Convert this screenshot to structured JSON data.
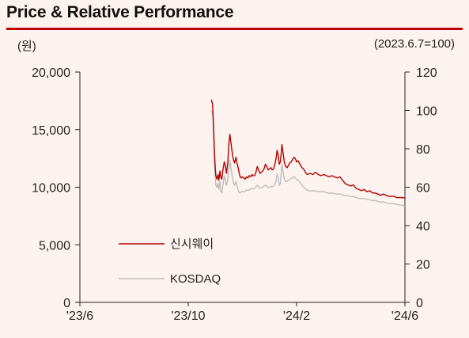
{
  "header": {
    "title": "Price & Relative Performance",
    "unit_left": "(원)",
    "unit_right": "(2023.6.7=100)"
  },
  "chart_data": {
    "type": "line",
    "title": "Price & Relative Performance",
    "y_left": {
      "ylim": [
        0,
        20000
      ],
      "ticks": [
        "0",
        "5,000",
        "10,000",
        "15,000",
        "20,000"
      ],
      "tick_values": [
        0,
        5000,
        10000,
        15000,
        20000
      ]
    },
    "y_right": {
      "ylim": [
        0,
        120
      ],
      "ticks": [
        "0",
        "20",
        "40",
        "60",
        "80",
        "100",
        "120"
      ],
      "tick_values": [
        0,
        20,
        40,
        60,
        80,
        100,
        120
      ]
    },
    "x": {
      "labels": [
        "'23/6",
        "'23/10",
        "'24/2",
        "'24/6"
      ],
      "positions": [
        0,
        4,
        8,
        12
      ],
      "range": [
        0,
        12
      ]
    },
    "legend_position": "lower-left",
    "series": [
      {
        "name": "신시웨이",
        "axis": "left",
        "color": "#b20000",
        "points": [
          [
            4.85,
            17600
          ],
          [
            4.9,
            17200
          ],
          [
            4.93,
            15500
          ],
          [
            4.96,
            13500
          ],
          [
            4.99,
            12000
          ],
          [
            5.02,
            11000
          ],
          [
            5.06,
            10700
          ],
          [
            5.1,
            11100
          ],
          [
            5.13,
            10600
          ],
          [
            5.17,
            11400
          ],
          [
            5.2,
            10900
          ],
          [
            5.24,
            10700
          ],
          [
            5.28,
            11500
          ],
          [
            5.33,
            12200
          ],
          [
            5.37,
            11900
          ],
          [
            5.41,
            11200
          ],
          [
            5.46,
            12100
          ],
          [
            5.5,
            13800
          ],
          [
            5.54,
            14600
          ],
          [
            5.58,
            13800
          ],
          [
            5.63,
            12900
          ],
          [
            5.67,
            12400
          ],
          [
            5.71,
            12100
          ],
          [
            5.76,
            12600
          ],
          [
            5.8,
            12100
          ],
          [
            5.85,
            11600
          ],
          [
            5.9,
            11000
          ],
          [
            5.95,
            10800
          ],
          [
            6.0,
            10900
          ],
          [
            6.05,
            10800
          ],
          [
            6.1,
            10700
          ],
          [
            6.15,
            10900
          ],
          [
            6.2,
            10800
          ],
          [
            6.25,
            11000
          ],
          [
            6.3,
            10900
          ],
          [
            6.35,
            11100
          ],
          [
            6.4,
            11000
          ],
          [
            6.45,
            11000
          ],
          [
            6.5,
            11300
          ],
          [
            6.55,
            11800
          ],
          [
            6.6,
            11500
          ],
          [
            6.65,
            11200
          ],
          [
            6.7,
            11300
          ],
          [
            6.75,
            11400
          ],
          [
            6.8,
            11600
          ],
          [
            6.85,
            12000
          ],
          [
            6.9,
            11800
          ],
          [
            6.95,
            11500
          ],
          [
            7.0,
            11600
          ],
          [
            7.05,
            11700
          ],
          [
            7.1,
            11500
          ],
          [
            7.15,
            11600
          ],
          [
            7.2,
            12000
          ],
          [
            7.25,
            12600
          ],
          [
            7.28,
            13200
          ],
          [
            7.32,
            12800
          ],
          [
            7.36,
            12000
          ],
          [
            7.4,
            12200
          ],
          [
            7.43,
            12900
          ],
          [
            7.46,
            13700
          ],
          [
            7.5,
            13000
          ],
          [
            7.55,
            12100
          ],
          [
            7.6,
            11800
          ],
          [
            7.65,
            11700
          ],
          [
            7.7,
            11900
          ],
          [
            7.75,
            12100
          ],
          [
            7.8,
            12200
          ],
          [
            7.85,
            12400
          ],
          [
            7.9,
            12600
          ],
          [
            7.95,
            12500
          ],
          [
            8.0,
            12200
          ],
          [
            8.05,
            12300
          ],
          [
            8.1,
            12100
          ],
          [
            8.15,
            11900
          ],
          [
            8.2,
            11700
          ],
          [
            8.25,
            11600
          ],
          [
            8.3,
            11400
          ],
          [
            8.35,
            11200
          ],
          [
            8.4,
            11100
          ],
          [
            8.5,
            11200
          ],
          [
            8.6,
            11100
          ],
          [
            8.7,
            11300
          ],
          [
            8.8,
            11100
          ],
          [
            8.9,
            11000
          ],
          [
            9.0,
            11100
          ],
          [
            9.1,
            11000
          ],
          [
            9.2,
            10900
          ],
          [
            9.3,
            11000
          ],
          [
            9.4,
            10900
          ],
          [
            9.5,
            10800
          ],
          [
            9.6,
            10900
          ],
          [
            9.7,
            10600
          ],
          [
            9.8,
            10300
          ],
          [
            9.9,
            10200
          ],
          [
            10.0,
            10100
          ],
          [
            10.1,
            10200
          ],
          [
            10.2,
            9900
          ],
          [
            10.3,
            9800
          ],
          [
            10.4,
            9700
          ],
          [
            10.5,
            9800
          ],
          [
            10.6,
            9600
          ],
          [
            10.7,
            9700
          ],
          [
            10.8,
            9500
          ],
          [
            10.9,
            9500
          ],
          [
            11.0,
            9400
          ],
          [
            11.1,
            9300
          ],
          [
            11.2,
            9400
          ],
          [
            11.3,
            9300
          ],
          [
            11.4,
            9200
          ],
          [
            11.5,
            9200
          ],
          [
            11.6,
            9200
          ],
          [
            11.7,
            9100
          ],
          [
            11.8,
            9100
          ],
          [
            11.9,
            9100
          ],
          [
            12.0,
            9050
          ]
        ]
      },
      {
        "name": "KOSDAQ",
        "axis": "right",
        "color": "#bdbdbd",
        "points": [
          [
            4.85,
            100
          ],
          [
            4.9,
            98
          ],
          [
            4.93,
            90
          ],
          [
            4.96,
            76
          ],
          [
            4.99,
            67
          ],
          [
            5.02,
            61
          ],
          [
            5.06,
            60
          ],
          [
            5.1,
            62
          ],
          [
            5.13,
            59
          ],
          [
            5.17,
            63
          ],
          [
            5.2,
            58
          ],
          [
            5.24,
            57
          ],
          [
            5.28,
            61
          ],
          [
            5.33,
            66
          ],
          [
            5.37,
            64
          ],
          [
            5.41,
            61
          ],
          [
            5.46,
            64
          ],
          [
            5.5,
            70
          ],
          [
            5.54,
            74
          ],
          [
            5.58,
            70
          ],
          [
            5.63,
            65
          ],
          [
            5.67,
            62
          ],
          [
            5.71,
            61
          ],
          [
            5.76,
            63
          ],
          [
            5.8,
            61
          ],
          [
            5.85,
            58
          ],
          [
            5.9,
            57
          ],
          [
            5.95,
            57.5
          ],
          [
            6.0,
            57.8
          ],
          [
            6.05,
            57.6
          ],
          [
            6.1,
            57.8
          ],
          [
            6.15,
            58.5
          ],
          [
            6.2,
            58.4
          ],
          [
            6.25,
            58.6
          ],
          [
            6.3,
            59
          ],
          [
            6.35,
            59.5
          ],
          [
            6.4,
            59.2
          ],
          [
            6.45,
            59.4
          ],
          [
            6.5,
            60
          ],
          [
            6.55,
            61
          ],
          [
            6.6,
            60.5
          ],
          [
            6.65,
            59.6
          ],
          [
            6.7,
            59.8
          ],
          [
            6.75,
            60.2
          ],
          [
            6.8,
            60.6
          ],
          [
            6.85,
            61
          ],
          [
            6.9,
            60.5
          ],
          [
            6.95,
            59.8
          ],
          [
            7.0,
            60.1
          ],
          [
            7.05,
            60.5
          ],
          [
            7.1,
            60.2
          ],
          [
            7.15,
            60.4
          ],
          [
            7.2,
            61.5
          ],
          [
            7.25,
            64
          ],
          [
            7.28,
            67
          ],
          [
            7.32,
            65
          ],
          [
            7.36,
            61
          ],
          [
            7.4,
            62
          ],
          [
            7.43,
            67
          ],
          [
            7.46,
            72
          ],
          [
            7.5,
            68
          ],
          [
            7.55,
            64
          ],
          [
            7.6,
            63
          ],
          [
            7.65,
            63
          ],
          [
            7.7,
            63.5
          ],
          [
            7.75,
            64
          ],
          [
            7.8,
            64.5
          ],
          [
            7.85,
            65
          ],
          [
            7.9,
            65.5
          ],
          [
            7.95,
            65
          ],
          [
            8.0,
            64
          ],
          [
            8.05,
            63.8
          ],
          [
            8.1,
            63
          ],
          [
            8.15,
            62
          ],
          [
            8.2,
            61
          ],
          [
            8.25,
            60.2
          ],
          [
            8.3,
            59.5
          ],
          [
            8.35,
            58.8
          ],
          [
            8.4,
            58.3
          ],
          [
            8.5,
            58
          ],
          [
            8.6,
            58.2
          ],
          [
            8.7,
            58
          ],
          [
            8.8,
            57.8
          ],
          [
            8.9,
            57.6
          ],
          [
            9.0,
            57.8
          ],
          [
            9.1,
            57.2
          ],
          [
            9.2,
            56.8
          ],
          [
            9.3,
            57
          ],
          [
            9.4,
            56.6
          ],
          [
            9.5,
            56.4
          ],
          [
            9.6,
            56.5
          ],
          [
            9.7,
            56
          ],
          [
            9.8,
            55.5
          ],
          [
            9.9,
            55.6
          ],
          [
            10.0,
            55
          ],
          [
            10.1,
            55.2
          ],
          [
            10.2,
            54.6
          ],
          [
            10.3,
            54.2
          ],
          [
            10.4,
            54
          ],
          [
            10.5,
            54.2
          ],
          [
            10.6,
            53.6
          ],
          [
            10.7,
            53.4
          ],
          [
            10.8,
            53
          ],
          [
            10.9,
            53.1
          ],
          [
            11.0,
            52.6
          ],
          [
            11.1,
            52.2
          ],
          [
            11.2,
            52.4
          ],
          [
            11.3,
            51.8
          ],
          [
            11.4,
            51.6
          ],
          [
            11.5,
            51.5
          ],
          [
            11.6,
            51.4
          ],
          [
            11.7,
            51
          ],
          [
            11.8,
            50.8
          ],
          [
            11.9,
            50.6
          ],
          [
            12.0,
            50
          ]
        ]
      }
    ]
  }
}
